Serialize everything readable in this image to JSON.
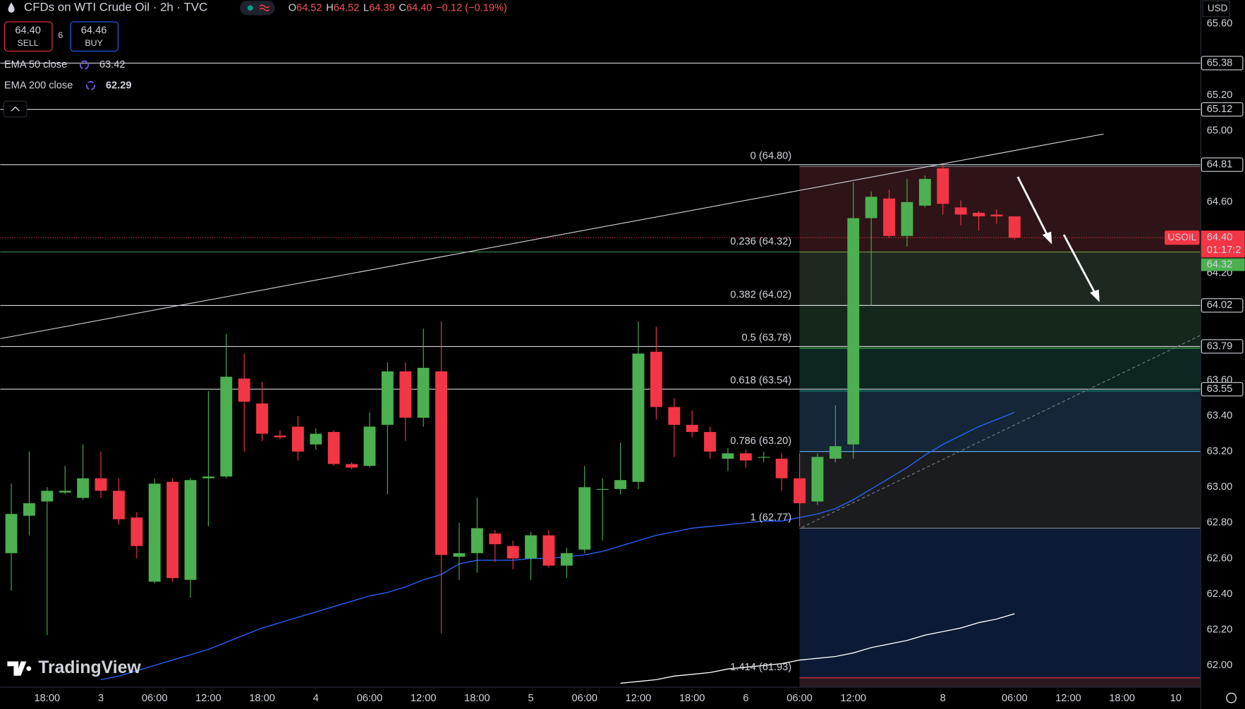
{
  "header": {
    "ohlc": [
      {
        "key": "O",
        "value": "64.52"
      },
      {
        "key": "H",
        "value": "64.52"
      },
      {
        "key": "L",
        "value": "64.39"
      },
      {
        "key": "C",
        "value": "64.40"
      }
    ],
    "change": "−0.12 (−0.19%)"
  },
  "trade": {
    "sell_price": "64.40",
    "sell_label": "SELL",
    "spread": "6",
    "buy_price": "64.46",
    "buy_label": "BUY"
  },
  "branding": "TradingView",
  "chart_data": {
    "type": "candlestick",
    "title": "CFDs on WTI Crude Oil · 2h · TVC",
    "currency": "USD",
    "up_color": "#4caf50",
    "down_color": "#f23645",
    "categories": [
      null,
      null,
      "18:00",
      null,
      null,
      "3",
      null,
      null,
      "06:00",
      null,
      null,
      "12:00",
      null,
      null,
      "18:00",
      null,
      null,
      "4",
      null,
      null,
      "06:00",
      null,
      null,
      "12:00",
      null,
      null,
      "18:00",
      null,
      null,
      "5",
      null,
      null,
      "06:00",
      null,
      null,
      "12:00",
      null,
      null,
      "18:00",
      null,
      null,
      "6",
      null,
      null,
      "06:00",
      null,
      null,
      "12:00",
      null,
      null,
      null,
      null,
      "8",
      null,
      null,
      null,
      "06:00",
      null,
      null,
      "12:00",
      null,
      null,
      "18:00",
      null,
      null,
      "10"
    ],
    "open": [
      62.63,
      62.84,
      62.92,
      62.97,
      62.94,
      63.05,
      62.98,
      62.83,
      62.47,
      63.03,
      62.48,
      63.05,
      63.06,
      63.61,
      63.47,
      63.29,
      63.34,
      63.24,
      63.31,
      63.13,
      63.12,
      63.35,
      63.65,
      63.39,
      63.65,
      62.61,
      62.63,
      62.74,
      62.67,
      62.6,
      62.73,
      62.56,
      62.65,
      62.99,
      62.99,
      63.03,
      63.76,
      63.45,
      63.35,
      63.31,
      63.16,
      63.19,
      63.17,
      63.16,
      63.05,
      62.92,
      63.16,
      63.24,
      64.51,
      64.62,
      64.41,
      64.58,
      64.79,
      64.57,
      64.54,
      64.53,
      64.52,
      null,
      null,
      null,
      null,
      null,
      null,
      null,
      null,
      null
    ],
    "high": [
      63.02,
      63.2,
      63.0,
      63.12,
      63.24,
      63.2,
      63.05,
      62.86,
      63.05,
      63.05,
      63.05,
      63.54,
      63.86,
      63.75,
      63.59,
      63.32,
      63.4,
      63.33,
      63.32,
      63.14,
      63.42,
      63.7,
      63.7,
      63.89,
      63.93,
      62.8,
      62.94,
      62.76,
      62.7,
      62.75,
      62.76,
      62.66,
      63.12,
      63.05,
      63.25,
      63.93,
      63.9,
      63.5,
      63.43,
      63.34,
      63.22,
      63.21,
      63.2,
      63.19,
      63.19,
      63.19,
      63.46,
      64.71,
      64.66,
      64.67,
      64.73,
      64.75,
      64.81,
      64.61,
      64.55,
      64.56,
      64.52,
      null,
      null,
      null,
      null,
      null,
      null,
      null,
      null,
      null
    ],
    "low": [
      62.42,
      62.73,
      62.17,
      62.96,
      62.93,
      62.94,
      62.79,
      62.6,
      62.46,
      62.47,
      62.38,
      62.78,
      63.05,
      63.2,
      63.26,
      63.27,
      63.15,
      63.21,
      63.12,
      63.1,
      63.11,
      62.96,
      63.26,
      63.34,
      62.18,
      62.48,
      62.52,
      62.58,
      62.54,
      62.48,
      62.55,
      62.49,
      62.63,
      62.7,
      62.96,
      62.99,
      63.38,
      63.17,
      63.28,
      63.16,
      63.09,
      63.11,
      63.14,
      62.98,
      62.78,
      62.9,
      63.14,
      63.16,
      64.02,
      64.4,
      64.35,
      64.57,
      64.53,
      64.47,
      64.44,
      64.48,
      64.39,
      null,
      null,
      null,
      null,
      null,
      null,
      null,
      null,
      null
    ],
    "close": [
      62.85,
      62.91,
      62.98,
      62.98,
      63.05,
      62.98,
      62.82,
      62.67,
      63.02,
      62.49,
      63.04,
      63.06,
      63.62,
      63.48,
      63.3,
      63.28,
      63.2,
      63.3,
      63.13,
      63.11,
      63.34,
      63.65,
      63.39,
      63.67,
      62.62,
      62.63,
      62.77,
      62.68,
      62.6,
      62.73,
      62.56,
      62.63,
      63.0,
      62.99,
      63.04,
      63.75,
      63.45,
      63.35,
      63.31,
      63.2,
      63.19,
      63.15,
      63.17,
      63.05,
      62.91,
      63.17,
      63.23,
      64.51,
      64.63,
      64.41,
      64.6,
      64.73,
      64.59,
      64.53,
      64.52,
      64.52,
      64.4,
      null,
      null,
      null,
      null,
      null,
      null,
      null,
      null,
      null
    ],
    "overlays": [
      {
        "name": "EMA 50 close",
        "last": "63.42",
        "color": "#2962ff",
        "values": [
          null,
          null,
          null,
          null,
          null,
          61.92,
          61.94,
          61.97,
          62.0,
          62.03,
          62.06,
          62.09,
          62.13,
          62.17,
          62.21,
          62.24,
          62.27,
          62.3,
          62.33,
          62.36,
          62.39,
          62.41,
          62.44,
          62.48,
          62.51,
          62.57,
          62.59,
          62.59,
          62.59,
          62.6,
          62.6,
          62.61,
          62.62,
          62.64,
          62.67,
          62.7,
          62.73,
          62.75,
          62.77,
          62.78,
          62.79,
          62.8,
          62.81,
          62.81,
          62.83,
          62.85,
          62.88,
          62.93,
          62.99,
          63.05,
          63.11,
          63.18,
          63.24,
          63.29,
          63.34,
          63.38,
          63.42,
          null,
          null,
          null,
          null,
          null,
          null,
          null,
          null,
          null
        ]
      },
      {
        "name": "EMA 200 close",
        "last": "62.29",
        "color": "#ffffff",
        "values": [
          null,
          null,
          null,
          null,
          null,
          null,
          null,
          null,
          null,
          null,
          null,
          null,
          null,
          null,
          null,
          null,
          null,
          null,
          null,
          null,
          null,
          null,
          null,
          null,
          null,
          null,
          null,
          null,
          null,
          null,
          null,
          null,
          null,
          null,
          61.9,
          61.91,
          61.92,
          61.94,
          61.95,
          61.96,
          61.98,
          61.99,
          62.0,
          62.01,
          62.03,
          62.04,
          62.05,
          62.07,
          62.1,
          62.12,
          62.14,
          62.17,
          62.19,
          62.21,
          62.24,
          62.26,
          62.29,
          null,
          null,
          null,
          null,
          null,
          null,
          null,
          null,
          null
        ]
      }
    ],
    "ylim": [
      61.88,
      65.734
    ],
    "yticks": [
      {
        "value": 65.6,
        "label": "65.60"
      },
      {
        "value": 65.2,
        "label": "65.20"
      },
      {
        "value": 65.0,
        "label": "65.00"
      },
      {
        "value": 64.6,
        "label": "64.60"
      },
      {
        "value": 64.2,
        "label": "64.20"
      },
      {
        "value": 63.6,
        "label": "63.60"
      },
      {
        "value": 63.4,
        "label": "63.40"
      },
      {
        "value": 63.2,
        "label": "63.20"
      },
      {
        "value": 63.0,
        "label": "63.00"
      },
      {
        "value": 62.8,
        "label": "62.80"
      },
      {
        "value": 62.6,
        "label": "62.60"
      },
      {
        "value": 62.4,
        "label": "62.40"
      },
      {
        "value": 62.2,
        "label": "62.20"
      },
      {
        "value": 62.0,
        "label": "62.00"
      }
    ],
    "grid": false,
    "hlines": [
      65.38,
      65.12,
      64.81,
      64.02,
      63.79,
      63.55
    ],
    "hline_color": "#d1d4dc",
    "fib": [
      {
        "value": 64.8,
        "label": "0 (64.80)",
        "color": "#787b86",
        "fill": "#2e1416"
      },
      {
        "value": 64.32,
        "label": "0.236 (64.32)",
        "color": "#f23645",
        "fill": "#1d291e"
      },
      {
        "value": 64.02,
        "label": "0.382 (64.02)",
        "color": "#81c784",
        "fill": "#15271a"
      },
      {
        "value": 63.78,
        "label": "0.5 (63.78)",
        "color": "#4caf50",
        "fill": "#0c2622"
      },
      {
        "value": 63.54,
        "label": "0.618 (63.54)",
        "color": "#089981",
        "fill": "#142637"
      },
      {
        "value": 63.2,
        "label": "0.786 (63.20)",
        "color": "#64b5f6",
        "fill": "#1b1c1f"
      },
      {
        "value": 62.77,
        "label": "1 (62.77)",
        "color": "#787b86",
        "fill": "#0c1a35"
      },
      {
        "value": 61.93,
        "label": "1.414 (61.93)",
        "color": "#f23645",
        "fill": "#2a1a1f"
      }
    ],
    "price": {
      "name": "USOIL",
      "value": 64.4,
      "label": "64.40",
      "countdown": "01:17:2",
      "color": "#f23645"
    },
    "support": {
      "value": 64.32,
      "label": "64.32",
      "color": "#4caf50"
    }
  }
}
